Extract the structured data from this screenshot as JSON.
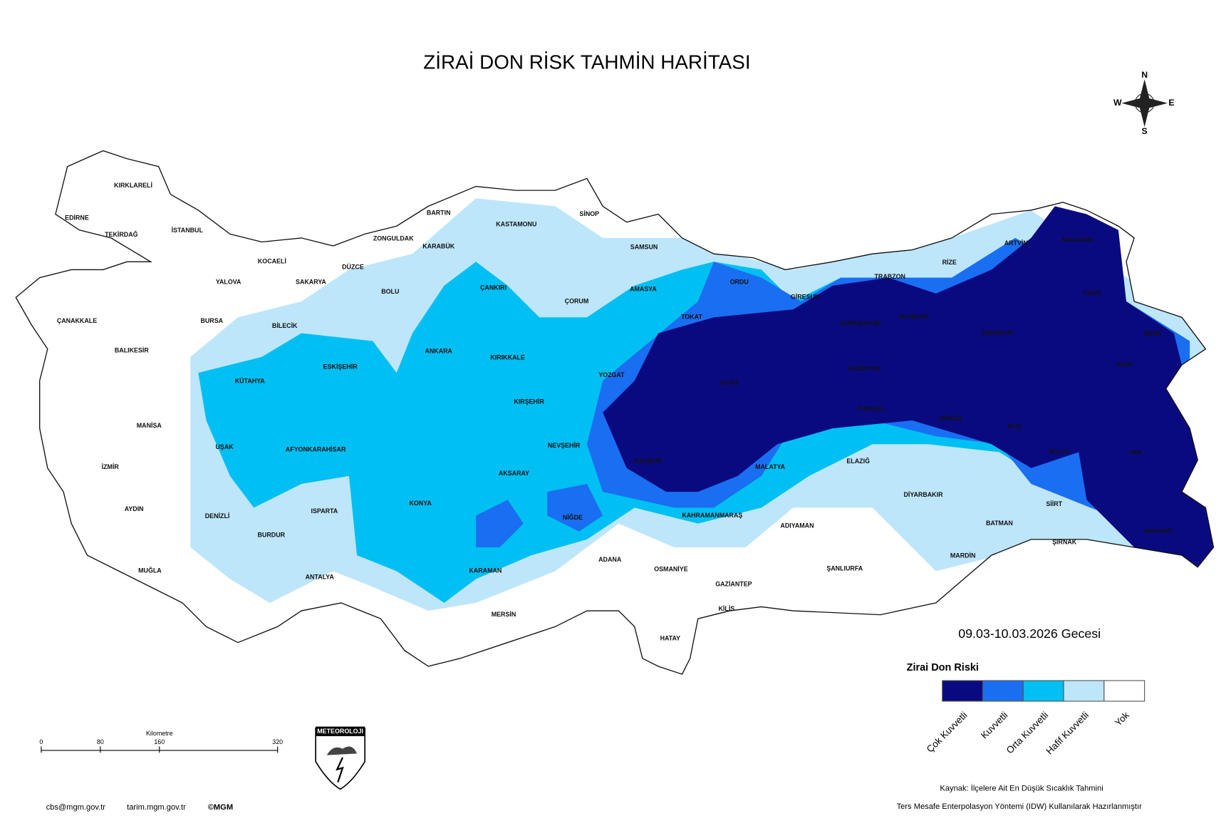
{
  "title": "ZİRAİ DON RİSK TAHMİN HARİTASI",
  "compass": {
    "n": "N",
    "e": "E",
    "s": "S",
    "w": "W"
  },
  "provinces": [
    "KIRKLARELİ",
    "EDİRNE",
    "TEKİRDAĞ",
    "İSTANBUL",
    "KOCAELİ",
    "YALOVA",
    "SAKARYA",
    "DÜZCE",
    "ZONGULDAK",
    "BARTIN",
    "KARABÜK",
    "KASTAMONU",
    "SİNOP",
    "SAMSUN",
    "ÇANAKKALE",
    "BURSA",
    "BİLECİK",
    "BOLU",
    "ÇANKIRI",
    "ÇORUM",
    "AMASYA",
    "ORDU",
    "GİRESUN",
    "TRABZON",
    "RİZE",
    "ARTVİN",
    "ARDAHAN",
    "KARS",
    "IĞDIR",
    "AĞRI",
    "ERZURUM",
    "BAYBURT",
    "GÜMÜŞHANE",
    "ERZİNCAN",
    "TOKAT",
    "SİVAS",
    "YOZGAT",
    "KIRIKKALE",
    "ANKARA",
    "ESKİŞEHİR",
    "KÜTAHYA",
    "BALIKESİR",
    "MANİSA",
    "UŞAK",
    "AFYONKARAHİSAR",
    "KIRŞEHİR",
    "NEVŞEHİR",
    "KAYSERİ",
    "AKSARAY",
    "KONYA",
    "ISPARTA",
    "DENİZLİ",
    "BURDUR",
    "İZMİR",
    "AYDIN",
    "MUĞLA",
    "ANTALYA",
    "NİĞDE",
    "KARAMAN",
    "MERSİN",
    "ADANA",
    "OSMANİYE",
    "HATAY",
    "GAZİANTEP",
    "KİLİS",
    "KAHRAMANMARAŞ",
    "ADIYAMAN",
    "MALATYA",
    "ELAZIĞ",
    "TUNCELİ",
    "BİNGÖL",
    "MUŞ",
    "BİTLİS",
    "VAN",
    "HAKKARİ",
    "ŞIRNAK",
    "SİİRT",
    "BATMAN",
    "DİYARBAKIR",
    "MARDİN",
    "ŞANLIURFA"
  ],
  "date_label": "09.03-10.03.2026 Gecesi",
  "legend": {
    "title": "Zirai Don Riski",
    "items": [
      {
        "label": "Çok Kuvvetli",
        "color": "#0a0a80"
      },
      {
        "label": "Kuvvetli",
        "color": "#1a6ef2"
      },
      {
        "label": "Orta Kuvvetli",
        "color": "#00bff2"
      },
      {
        "label": "Hafif Kuvvetli",
        "color": "#bde6fb"
      },
      {
        "label": "Yok",
        "color": "#ffffff"
      }
    ]
  },
  "scale_bar": {
    "unit": "Kilometre",
    "ticks": [
      0,
      80,
      160,
      320
    ]
  },
  "logo": "METEOROLOJI",
  "footer": [
    "cbs@mgm.gov.tr",
    "tarim.mgm.gov.tr",
    "©MGM"
  ],
  "source": [
    "Kaynak: İlçelere Ait En Düşük Sıcaklık Tahmini",
    "Ters Mesafe Enterpolasyon Yöntemi (IDW) Kullanılarak Hazırlanmıştır"
  ]
}
